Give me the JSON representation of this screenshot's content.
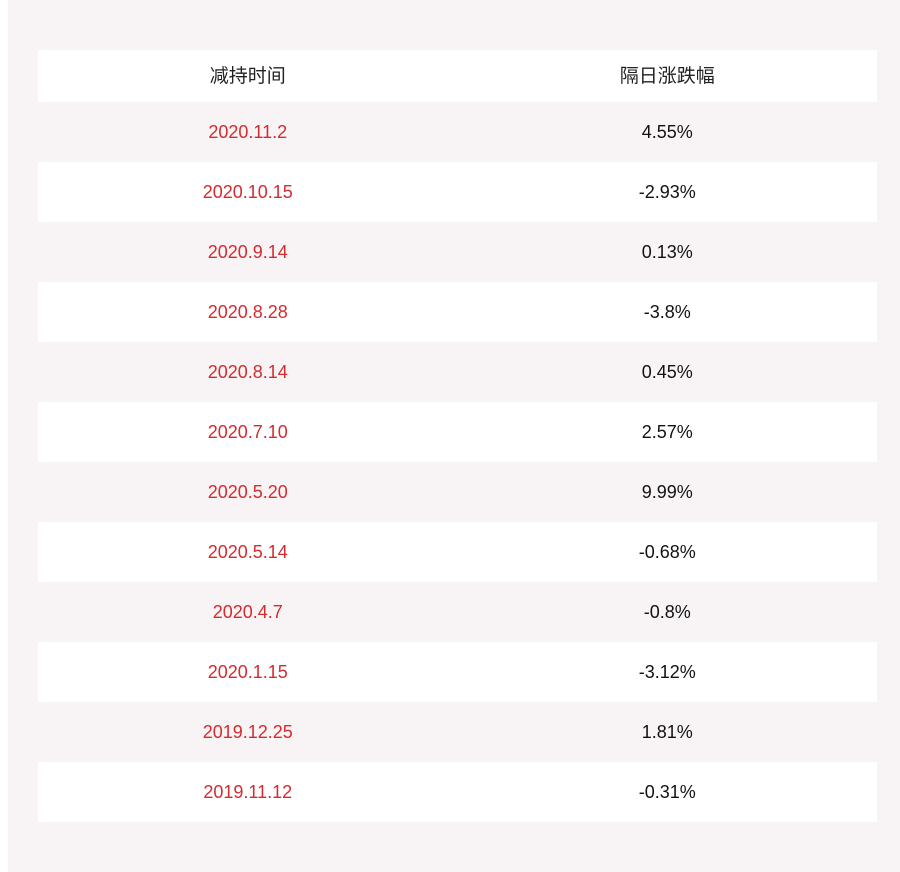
{
  "table": {
    "headers": [
      "减持时间",
      "隔日涨跌幅"
    ],
    "rows": [
      {
        "date": "2020.11.2",
        "change": "4.55%"
      },
      {
        "date": "2020.10.15",
        "change": "-2.93%"
      },
      {
        "date": "2020.9.14",
        "change": "0.13%"
      },
      {
        "date": "2020.8.28",
        "change": "-3.8%"
      },
      {
        "date": "2020.8.14",
        "change": "0.45%"
      },
      {
        "date": "2020.7.10",
        "change": "2.57%"
      },
      {
        "date": "2020.5.20",
        "change": "9.99%"
      },
      {
        "date": "2020.5.14",
        "change": "-0.68%"
      },
      {
        "date": "2020.4.7",
        "change": "-0.8%"
      },
      {
        "date": "2020.1.15",
        "change": "-3.12%"
      },
      {
        "date": "2019.12.25",
        "change": "1.81%"
      },
      {
        "date": "2019.11.12",
        "change": "-0.31%"
      }
    ]
  },
  "colors": {
    "date_text": "#d42b2f",
    "value_text": "#111111",
    "panel_bg": "#f8f4f5",
    "row_alt_bg": "#ffffff"
  }
}
